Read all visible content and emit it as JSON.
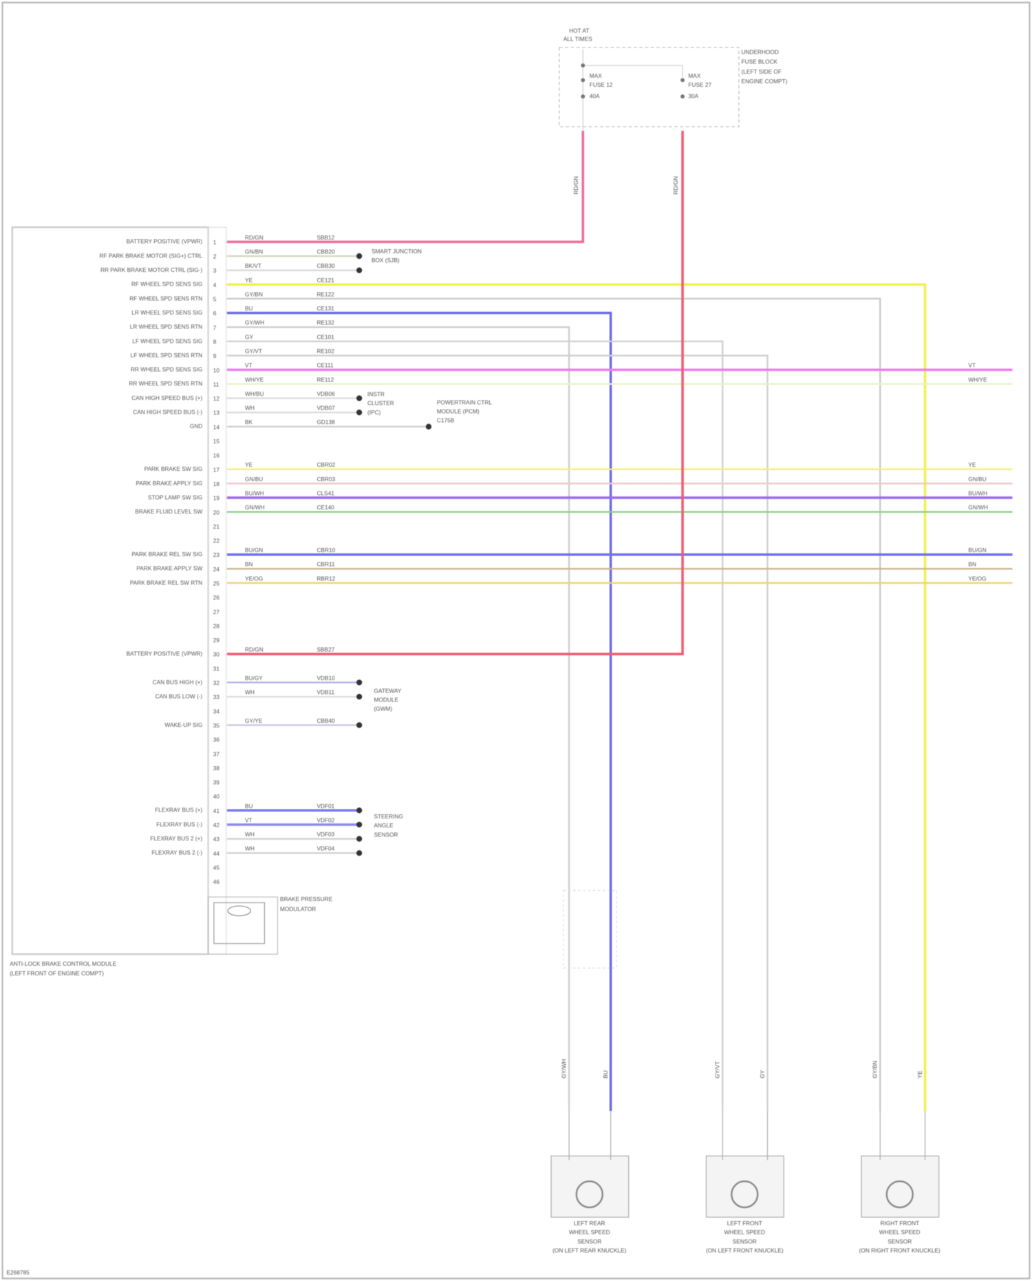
{
  "fuse_box": {
    "title": [
      "HOT AT",
      "ALL TIMES"
    ],
    "name": [
      "UNDERHOOD",
      "FUSE BLOCK",
      "(LEFT SIDE OF",
      "ENGINE COMPT)"
    ],
    "fuse_left": [
      "MAX",
      "FUSE 12",
      "40A"
    ],
    "fuse_right": [
      "MAX",
      "FUSE 27",
      "30A"
    ],
    "wire_left": "RD/GN",
    "wire_right": "RD/GN"
  },
  "module": {
    "name": [
      "ANTI-LOCK BRAKE CONTROL MODULE",
      "(LEFT FRONT OF ENGINE COMPT)"
    ],
    "pump_label": [
      "BRAKE PRESSURE",
      "MODULATOR"
    ],
    "pins": [
      "1",
      "2",
      "3",
      "4",
      "5",
      "6",
      "7",
      "8",
      "9",
      "10",
      "11",
      "12",
      "13",
      "14",
      "15",
      "16",
      "17",
      "18",
      "19",
      "20",
      "21",
      "22",
      "23",
      "24",
      "25",
      "26",
      "27",
      "28",
      "29",
      "30",
      "31",
      "32",
      "33",
      "34",
      "35",
      "36",
      "37",
      "38",
      "39",
      "40",
      "41",
      "42",
      "43",
      "44",
      "45",
      "46"
    ]
  },
  "rows": [
    {
      "pin": 1,
      "label": "BATTERY POSITIVE (VPWR)",
      "wire": "RD/GN",
      "circuit": "SBB12",
      "color": "#f06a9a"
    },
    {
      "pin": 2,
      "label": "RF PARK BRAKE MOTOR (SIG+) CTRL",
      "wire": "GN/BN",
      "circuit": "CBB20",
      "color": "#cfd8c0"
    },
    {
      "pin": 3,
      "label": "RR PARK BRAKE MOTOR CTRL (SIG-)",
      "wire": "BK/VT",
      "circuit": "CBB30",
      "color": "#d8d8d8"
    },
    {
      "pin": 4,
      "label": "RF WHEEL SPD SENS SIG",
      "wire": "YE",
      "circuit": "CE121",
      "color": "#f0f050"
    },
    {
      "pin": 5,
      "label": "RF WHEEL SPD SENS RTN",
      "wire": "GY/BN",
      "circuit": "RE122",
      "color": "#c8c8c8"
    },
    {
      "pin": 6,
      "label": "LR WHEEL SPD SENS SIG",
      "wire": "BU",
      "circuit": "CE131",
      "color": "#6a6af0"
    },
    {
      "pin": 7,
      "label": "LR WHEEL SPD SENS RTN",
      "wire": "GY/WH",
      "circuit": "RE132",
      "color": "#cccccc"
    },
    {
      "pin": 8,
      "label": "LF WHEEL SPD SENS SIG",
      "wire": "GY",
      "circuit": "CE101",
      "color": "#d0d0d0"
    },
    {
      "pin": 9,
      "label": "LF WHEEL SPD SENS RTN",
      "wire": "GY/VT",
      "circuit": "RE102",
      "color": "#d0d0d0"
    },
    {
      "pin": 10,
      "label": "RR WHEEL SPD SENS SIG",
      "wire": "VT",
      "circuit": "CE111",
      "color": "#f07af0"
    },
    {
      "pin": 11,
      "label": "RR WHEEL SPD SENS RTN",
      "wire": "WH/YE",
      "circuit": "RE112",
      "color": "#eef0c8"
    },
    {
      "pin": 12,
      "label": "CAN HIGH SPEED BUS (+)",
      "wire": "WH/BU",
      "circuit": "VDB06",
      "color": "#dcdcdc"
    },
    {
      "pin": 13,
      "label": "CAN HIGH SPEED BUS (-)",
      "wire": "WH",
      "circuit": "VDB07",
      "color": "#dcdcdc"
    },
    {
      "pin": 14,
      "label": "GND",
      "wire": "BK",
      "circuit": "GD138",
      "color": "#cfcfcf"
    },
    {
      "pin": 17,
      "label": "PARK BRAKE SW SIG",
      "wire": "YE",
      "circuit": "CBR02",
      "color": "#f0f070"
    },
    {
      "pin": 18,
      "label": "PARK BRAKE APPLY SIG",
      "wire": "GN/BU",
      "circuit": "CBR03",
      "color": "#f0c8c8"
    },
    {
      "pin": 19,
      "label": "STOP LAMP SW SIG",
      "wire": "BU/WH",
      "circuit": "CLS41",
      "color": "#9a6af0"
    },
    {
      "pin": 20,
      "label": "BRAKE FLUID LEVEL SW",
      "wire": "GN/WH",
      "circuit": "CE140",
      "color": "#8ad08a"
    },
    {
      "pin": 23,
      "label": "PARK BRAKE REL SW SIG",
      "wire": "BU/GN",
      "circuit": "CBR10",
      "color": "#7070f0"
    },
    {
      "pin": 24,
      "label": "PARK BRAKE APPLY SW",
      "wire": "BN",
      "circuit": "CBR11",
      "color": "#c8b48a"
    },
    {
      "pin": 25,
      "label": "PARK BRAKE REL SW RTN",
      "wire": "YE/OG",
      "circuit": "RBR12",
      "color": "#f0d070"
    },
    {
      "pin": 30,
      "label": "BATTERY POSITIVE (VPWR)",
      "wire": "RD/GN",
      "circuit": "SBB27",
      "color": "#f05a70"
    },
    {
      "pin": 32,
      "label": "CAN BUS HIGH (+)",
      "wire": "BU/GY",
      "circuit": "VDB10",
      "color": "#b4b4f0"
    },
    {
      "pin": 33,
      "label": "CAN BUS LOW (-)",
      "wire": "WH",
      "circuit": "VDB11",
      "color": "#dcdcdc"
    },
    {
      "pin": 35,
      "label": "WAKE-UP SIG",
      "wire": "GY/YE",
      "circuit": "CBB40",
      "color": "#c8c8e0"
    },
    {
      "pin": 41,
      "label": "FLEXRAY BUS (+)",
      "wire": "BU",
      "circuit": "VDF01",
      "color": "#7a7af0"
    },
    {
      "pin": 42,
      "label": "FLEXRAY BUS (-)",
      "wire": "VT",
      "circuit": "VDF02",
      "color": "#8a8af0"
    },
    {
      "pin": 43,
      "label": "FLEXRAY BUS 2 (+)",
      "wire": "WH",
      "circuit": "VDF03",
      "color": "#d0d0d0"
    },
    {
      "pin": 44,
      "label": "FLEXRAY BUS 2 (-)",
      "wire": "WH",
      "circuit": "VDF04",
      "color": "#d0d0d0"
    }
  ],
  "splices": {
    "s1": [
      "SMART JUNCTION",
      "BOX (SJB)"
    ],
    "s2": [
      "INSTR",
      "CLUSTER",
      "(IPC)"
    ],
    "s3": [
      "POWERTRAIN CTRL",
      "MODULE (PCM)",
      "C175B"
    ],
    "s4": [
      "GATEWAY",
      "MODULE",
      "(GWM)"
    ],
    "s5": [
      "STEERING",
      "ANGLE",
      "SENSOR"
    ]
  },
  "right_edge": {
    "10": "VT",
    "11": "WH/YE",
    "17": "YE",
    "18": "GN/BU",
    "19": "BU/WH",
    "20": "GN/WH",
    "23": "BU/GN",
    "24": "BN",
    "25": "YE/OG"
  },
  "sensors": [
    {
      "name": [
        "LEFT REAR",
        "WHEEL SPEED",
        "SENSOR",
        "(ON LEFT REAR KNUCKLE)"
      ],
      "wire_a": "GY/WH",
      "wire_b": "BU"
    },
    {
      "name": [
        "LEFT FRONT",
        "WHEEL SPEED",
        "SENSOR",
        "(ON LEFT FRONT KNUCKLE)"
      ],
      "wire_a": "GY/VT",
      "wire_b": "GY"
    },
    {
      "name": [
        "RIGHT FRONT",
        "WHEEL SPEED",
        "SENSOR",
        "(ON RIGHT FRONT KNUCKLE)"
      ],
      "wire_a": "GY/BN",
      "wire_b": "YE"
    }
  ],
  "footer": "E268785"
}
